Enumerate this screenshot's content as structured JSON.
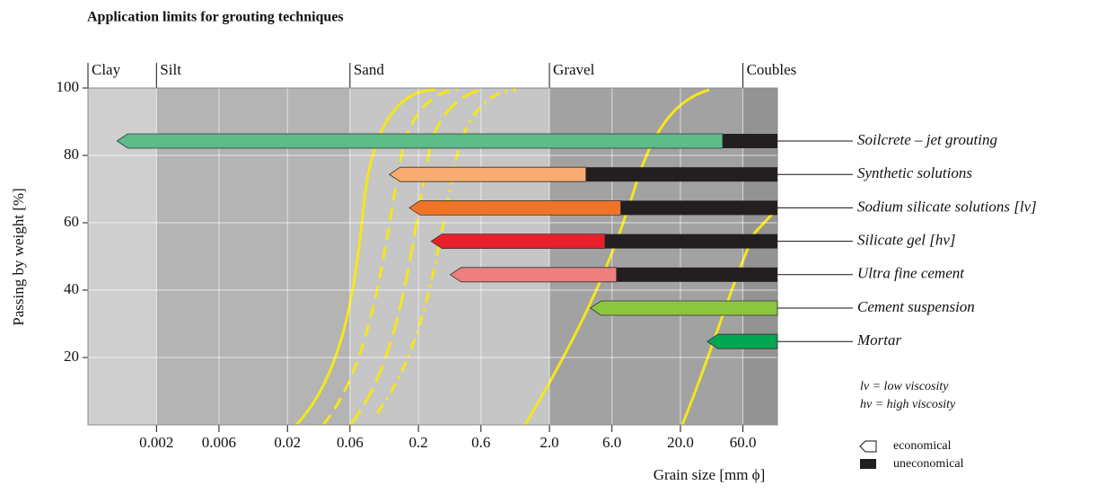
{
  "chart_data": {
    "type": "range-bar",
    "title": "Application limits for grouting techniques",
    "y_label": "Passing by weight [%]",
    "x_label": "Grain size [mm ϕ]",
    "log_x": true,
    "xlim": [
      0.0006,
      110
    ],
    "xticks": [
      0.002,
      0.006,
      0.02,
      0.06,
      0.2,
      0.6,
      {
        "value": 2,
        "label": "2.0"
      },
      {
        "value": 6,
        "label": "6.0"
      },
      {
        "value": 20,
        "label": "20.0"
      },
      {
        "value": 60,
        "label": "60.0"
      }
    ],
    "ylim": [
      0,
      100
    ],
    "yticks": [
      20,
      40,
      60,
      80,
      100
    ],
    "grid": true,
    "soil_classes": [
      "Clay",
      "Silt",
      "Sand",
      "Gravel",
      "Coubles"
    ],
    "soil_boundaries": [
      0.002,
      0.06,
      2,
      60
    ],
    "uneconomical_color": "#231f20",
    "series": [
      {
        "name": "Soilcrete – jet grouting",
        "color": "#5cbd8a",
        "from": 0.001,
        "to": 42
      },
      {
        "name": "Synthetic solutions",
        "color": "#f8ac72",
        "from": 0.12,
        "to": 3.8
      },
      {
        "name": "Sodium silicate solutions  [lv]",
        "color": "#f07426",
        "from": 0.17,
        "to": 7
      },
      {
        "name": "Silicate gel  [hv]",
        "color": "#e8202a",
        "from": 0.25,
        "to": 5.3
      },
      {
        "name": "Ultra fine cement",
        "color": "#ef7e7e",
        "from": 0.35,
        "to": 6.5
      },
      {
        "name": "Cement suspension",
        "color": "#8cc63f",
        "from": 4.1,
        "to": null
      },
      {
        "name": "Mortar",
        "color": "#00a651",
        "from": 32,
        "to": null
      }
    ],
    "notes": [
      "lv = low viscosity",
      "hv = high viscosity"
    ],
    "legend": [
      "economical",
      "uneconomical"
    ]
  }
}
